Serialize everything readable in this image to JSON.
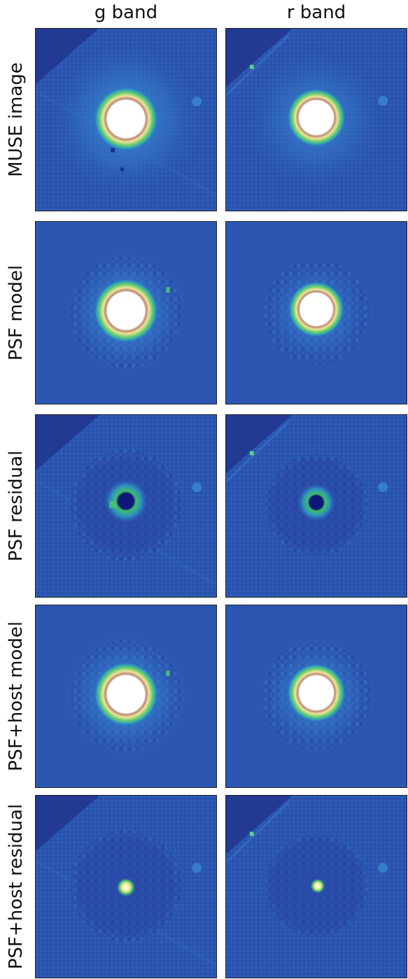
{
  "columns": [
    {
      "label": "g band"
    },
    {
      "label": "r band"
    }
  ],
  "rows": [
    {
      "label": "MUSE image",
      "type": "image"
    },
    {
      "label": "PSF model",
      "type": "model"
    },
    {
      "label": "PSF residual",
      "type": "residual"
    },
    {
      "label": "PSF+host model",
      "type": "model"
    },
    {
      "label": "PSF+host residual",
      "type": "hostres"
    }
  ],
  "colors": {
    "background": "#2b57b3",
    "corner": "#223a92",
    "halo": "#3a8ad0",
    "ring_green": "#6bd06a",
    "ring_yellow": "#f0e19a",
    "ring_brown": "#8b5a4a",
    "core": "#ffffff",
    "hole": "#0e1878"
  }
}
